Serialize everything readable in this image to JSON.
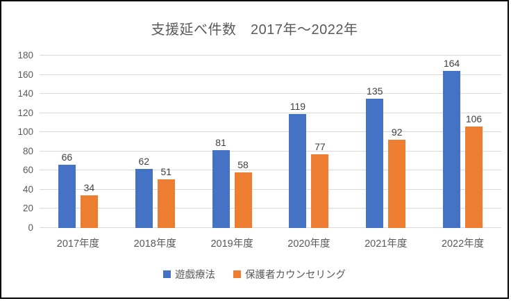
{
  "chart_data": {
    "type": "bar",
    "title": "支援延べ件数　2017年〜2022年",
    "categories": [
      "2017年度",
      "2018年度",
      "2019年度",
      "2020年度",
      "2021年度",
      "2022年度"
    ],
    "series": [
      {
        "name": "遊戯療法",
        "slug": "play-therapy",
        "color": "#4472C4",
        "values": [
          66,
          62,
          81,
          119,
          135,
          164
        ]
      },
      {
        "name": "保護者カウンセリング",
        "slug": "parent-counseling",
        "color": "#ED7D31",
        "values": [
          34,
          51,
          58,
          77,
          92,
          106
        ]
      }
    ],
    "ylim": [
      0,
      180
    ],
    "yticks": [
      0,
      20,
      40,
      60,
      80,
      100,
      120,
      140,
      160,
      180
    ],
    "grid": "horizontal",
    "gridline_color": "#D9D9D9",
    "axis_text_color": "#595959",
    "data_label_color": "#404040",
    "legend_position": "bottom",
    "background_color": "#FFFFFF",
    "border_color": "#000000"
  }
}
